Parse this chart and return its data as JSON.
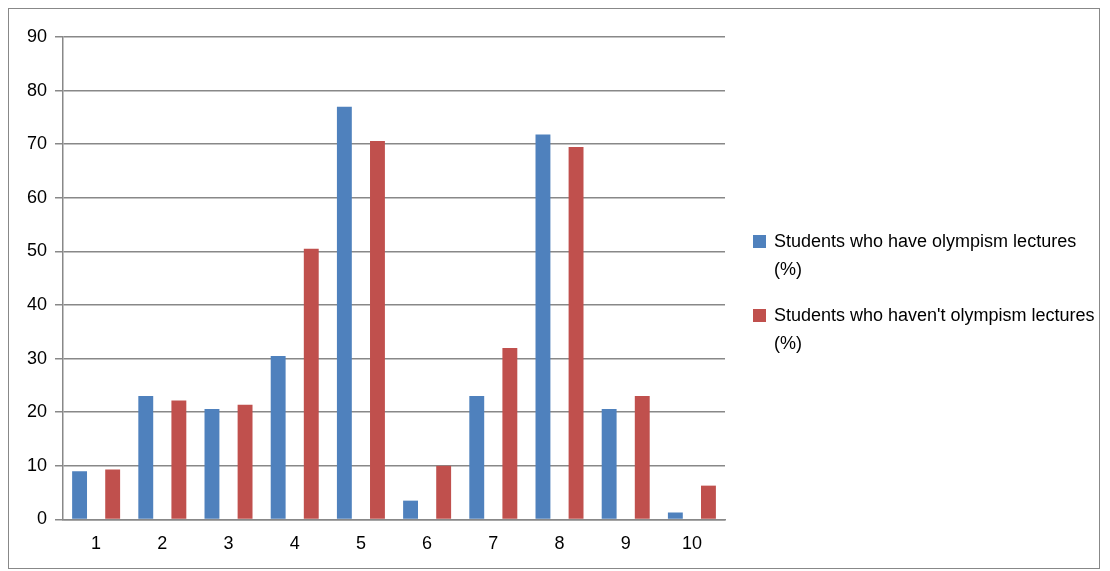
{
  "chart_data": {
    "type": "bar",
    "categories": [
      "1",
      "2",
      "3",
      "4",
      "5",
      "6",
      "7",
      "8",
      "9",
      "10"
    ],
    "series": [
      {
        "name": "Students who have olympism lectures (%)",
        "color": "#4f81bd",
        "values": [
          9,
          23,
          20.6,
          30.5,
          77,
          3.5,
          23,
          71.8,
          20.6,
          1.3
        ]
      },
      {
        "name": "Students who haven't olympism lectures (%)",
        "color": "#c0504d",
        "values": [
          9.3,
          22.2,
          21.4,
          50.5,
          70.6,
          10,
          32,
          69.5,
          23,
          6.3
        ]
      }
    ],
    "ylim": [
      0,
      90
    ],
    "yticks": [
      0,
      10,
      20,
      30,
      40,
      50,
      60,
      70,
      80,
      90
    ],
    "grid": "y",
    "legend": "right"
  }
}
